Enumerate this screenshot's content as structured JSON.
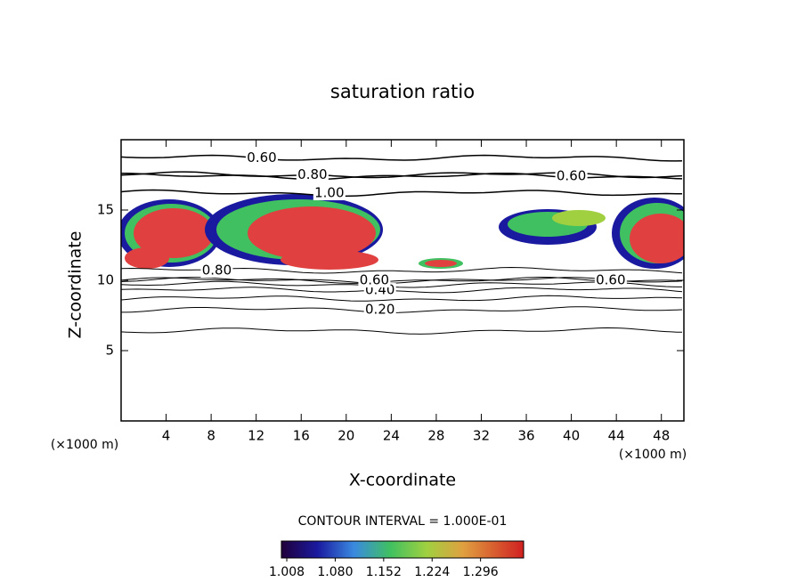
{
  "chart_data": {
    "type": "contour",
    "title": "saturation ratio",
    "xlabel": "X-coordinate",
    "ylabel": "Z-coordinate",
    "x_unit_left": "(×1000 m)",
    "x_unit_right": "(×1000 m)",
    "xlim": [
      0,
      50
    ],
    "ylim": [
      0,
      20
    ],
    "xticks": [
      4,
      8,
      12,
      16,
      20,
      24,
      28,
      32,
      36,
      40,
      44,
      48
    ],
    "yticks": [
      5,
      10,
      15
    ],
    "contour_interval": "CONTOUR INTERVAL = 1.000E-01",
    "contours": [
      {
        "level": 0.1,
        "z": 6.4
      },
      {
        "level": {
          "value": 0.2,
          "label": "0.20"
        },
        "z": 7.9,
        "label_x": 23
      },
      {
        "level": 0.3,
        "z": 8.7
      },
      {
        "level": {
          "value": 0.4,
          "label": "0.40"
        },
        "z": 9.3,
        "label_x": 23
      },
      {
        "level": 0.5,
        "z": 9.7
      },
      {
        "level": {
          "value": 0.6,
          "label": "0.60"
        },
        "z": 10.0,
        "label_x": 22.5
      },
      {
        "level": {
          "value": 0.6,
          "label": "0.60"
        },
        "z": 10.0,
        "label_x": 43.5
      },
      {
        "level": {
          "value": 0.8,
          "label": "0.80"
        },
        "z": 10.7,
        "label_x": 8.5
      },
      {
        "level": {
          "value": 0.6,
          "label": "0.60"
        },
        "z": 18.7,
        "label_x": 12.5
      },
      {
        "level": {
          "value": 0.8,
          "label": "0.80"
        },
        "z": 17.5,
        "label_x": 17
      },
      {
        "level": {
          "value": 1.0,
          "label": "1.00"
        },
        "z": 16.2,
        "label_x": 18.5
      },
      {
        "level": {
          "value": 0.6,
          "label": "0.60"
        },
        "z": 17.4,
        "label_x": 40
      }
    ],
    "clim": [
      1.0,
      1.36
    ],
    "cticks": [
      1.008,
      {
        "value": 1.08,
        "label": "1.080"
      },
      1.152,
      1.224,
      1.296
    ]
  }
}
